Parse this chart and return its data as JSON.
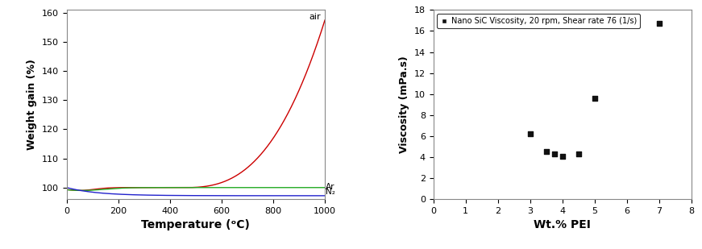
{
  "tga": {
    "xlabel": "Temperature (ᵒC)",
    "ylabel": "Weight gain (%)",
    "ylim": [
      96,
      161
    ],
    "xlim": [
      0,
      1000
    ],
    "yticks": [
      100,
      110,
      120,
      130,
      140,
      150,
      160
    ],
    "xticks": [
      0,
      200,
      400,
      600,
      800,
      1000
    ],
    "air_label": "air",
    "ar_label": "Ar",
    "n2_label": "N₂",
    "air_color": "#cc0000",
    "ar_color": "#22aa22",
    "n2_color": "#2222cc"
  },
  "viscosity": {
    "xlabel": "Wt.% PEI",
    "ylabel": "Viscosity (mPa.s)",
    "xlim": [
      0,
      8
    ],
    "ylim": [
      0,
      18
    ],
    "xticks": [
      0,
      1,
      2,
      3,
      4,
      5,
      6,
      7,
      8
    ],
    "yticks": [
      0,
      2,
      4,
      6,
      8,
      10,
      12,
      14,
      16,
      18
    ],
    "scatter_x": [
      3.0,
      3.5,
      3.75,
      4.0,
      4.5,
      5.0,
      7.0
    ],
    "scatter_y": [
      6.2,
      4.5,
      4.3,
      4.1,
      4.3,
      9.6,
      16.7
    ],
    "legend_label": "Nano SiC Viscosity, 20 rpm, Shear rate 76 (1/s)",
    "marker_color": "#111111",
    "marker": "s",
    "marker_size": 5
  }
}
